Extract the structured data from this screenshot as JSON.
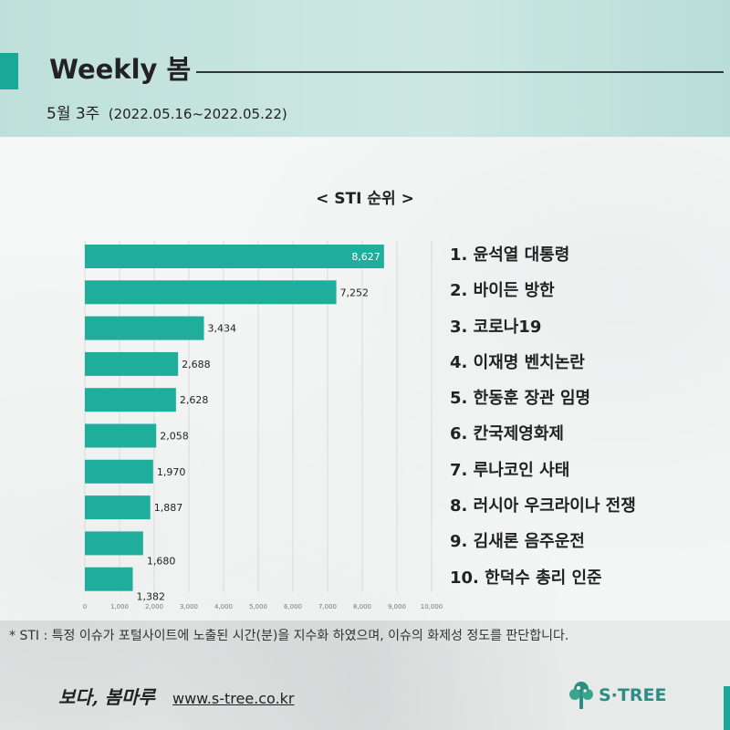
{
  "header": {
    "title": "Weekly 봄",
    "week": "5월 3주",
    "date_range": "(2022.05.16~2022.05.22)"
  },
  "chart_title": "< STI 순위 >",
  "chart_data": {
    "type": "bar",
    "orientation": "horizontal",
    "categories": [
      "1",
      "2",
      "3",
      "4",
      "5",
      "6",
      "7",
      "8",
      "9",
      "10"
    ],
    "values": [
      8627,
      7252,
      3434,
      2688,
      2628,
      2058,
      1970,
      1887,
      1680,
      1382
    ],
    "value_labels": [
      "8,627",
      "7,252",
      "3,434",
      "2,688",
      "2,628",
      "2,058",
      "1,970",
      "1,887",
      "1,680",
      "1,382"
    ],
    "xlim": [
      0,
      10000
    ],
    "x_ticks": [
      "0",
      "1,000",
      "2,000",
      "3,000",
      "4,000",
      "5,000",
      "6,000",
      "7,000",
      "8,000",
      "9,000",
      "10,000"
    ],
    "grid": true,
    "bar_color": "#1fae9b",
    "label_inside_color": "#ffffff",
    "label_outside_color": "#222222"
  },
  "ranking": [
    "1. 윤석열 대통령",
    "2. 바이든 방한",
    "3. 코로나19",
    "4. 이재명 벤치논란",
    "5. 한동훈 장관 임명",
    "6. 칸국제영화제",
    "7. 루나코인 사태",
    "8. 러시아 우크라이나 전쟁",
    "9. 김새론 음주운전",
    "10. 한덕수 총리 인준"
  ],
  "footnote": "* STI : 특정 이슈가 포털사이트에 노출된 시간(분)을 지수화 하였으며, 이슈의 화제성 정도를 판단합니다.",
  "footer": {
    "brand": "보다, 봄마루",
    "url": "www.s-tree.co.kr",
    "logo_text": "S·TREE"
  },
  "colors": {
    "accent": "#1aa899",
    "header_bg": "#c4e3de",
    "logo": "#2b8e80"
  }
}
